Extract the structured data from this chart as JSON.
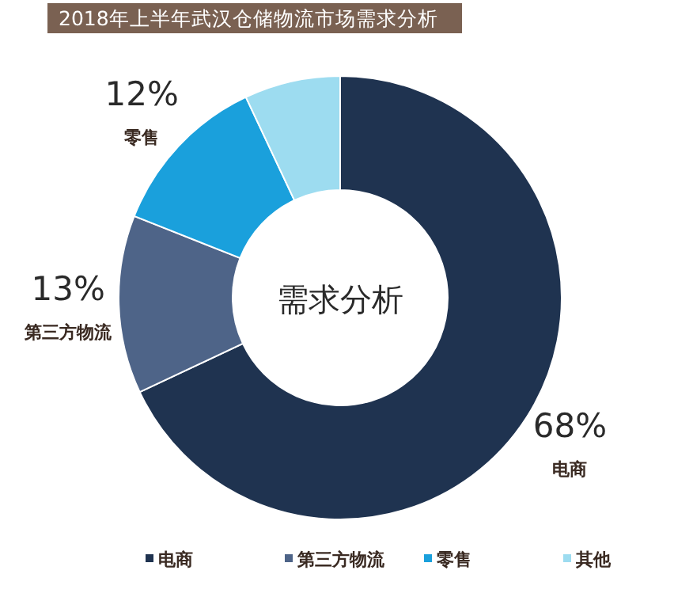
{
  "chart_data": {
    "type": "donut",
    "title": "2018年上半年武汉仓储物流市场需求分析",
    "categories": [
      "电商",
      "第三方物流",
      "零售",
      "其他"
    ],
    "values": [
      68,
      13,
      12,
      7
    ],
    "value_labels": [
      "68%",
      "13%",
      "12%",
      null
    ],
    "colors": [
      "#1f3350",
      "#4e6488",
      "#1aa0dc",
      "#9ddcf0"
    ],
    "annotations": [
      "需求分析"
    ],
    "legend": "bottom"
  }
}
